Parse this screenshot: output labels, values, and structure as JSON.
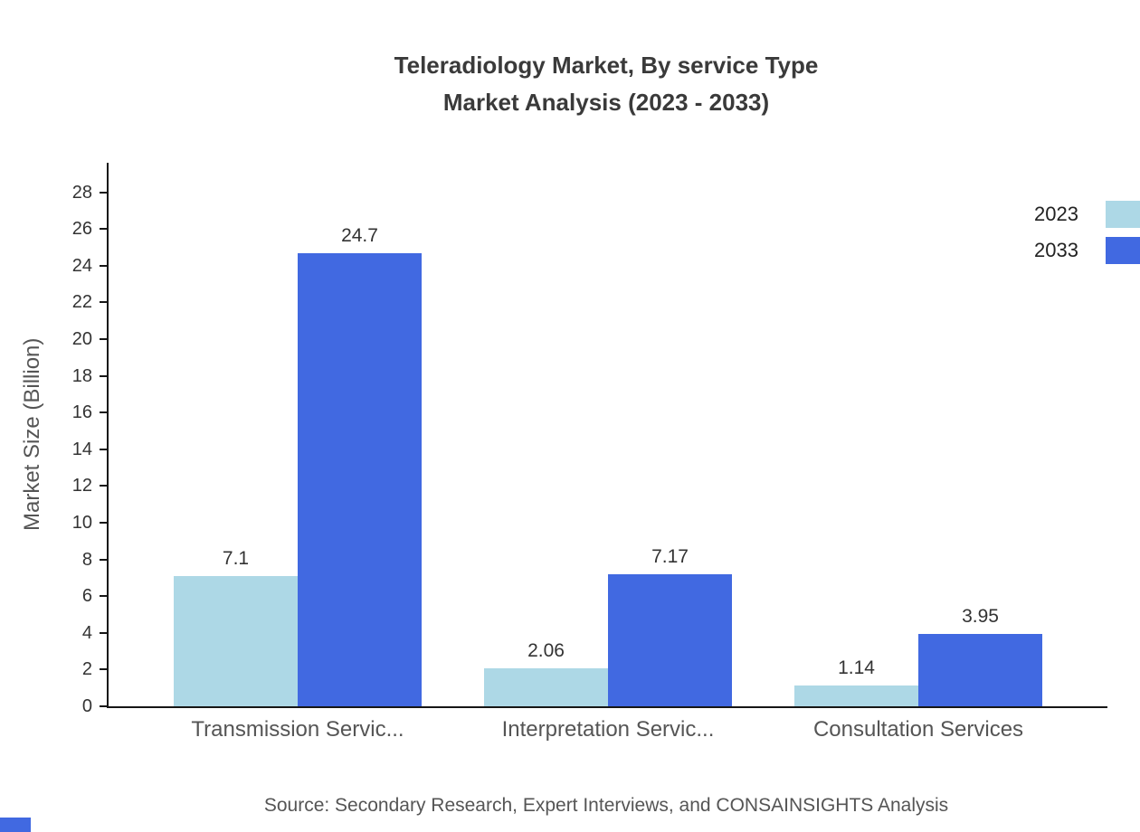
{
  "title": {
    "line1": "Teleradiology Market, By service Type",
    "line2": "Market Analysis (2023 - 2033)"
  },
  "source": "Source: Secondary Research, Expert Interviews, and CONSAINSIGHTS Analysis",
  "colors": {
    "series_2023": "#ADD8E6",
    "series_2033": "#4169E1",
    "axis": "#161616",
    "corner_mark": "#4169E1"
  },
  "chart_data": {
    "type": "bar",
    "title": "Teleradiology Market, By service Type Market Analysis (2023 - 2033)",
    "categories": [
      "Transmission Servic...",
      "Interpretation Servic...",
      "Consultation Services"
    ],
    "series": [
      {
        "name": "2023",
        "color": "#ADD8E6",
        "values": [
          7.1,
          2.06,
          1.14
        ]
      },
      {
        "name": "2033",
        "color": "#4169E1",
        "values": [
          24.7,
          7.17,
          3.95
        ]
      }
    ],
    "xlabel": "",
    "ylabel": "Market Size (Billion)",
    "ylim": [
      0,
      28
    ],
    "ytick_step": 2,
    "grid": false,
    "legend_position": "top-right",
    "value_labels": true
  }
}
